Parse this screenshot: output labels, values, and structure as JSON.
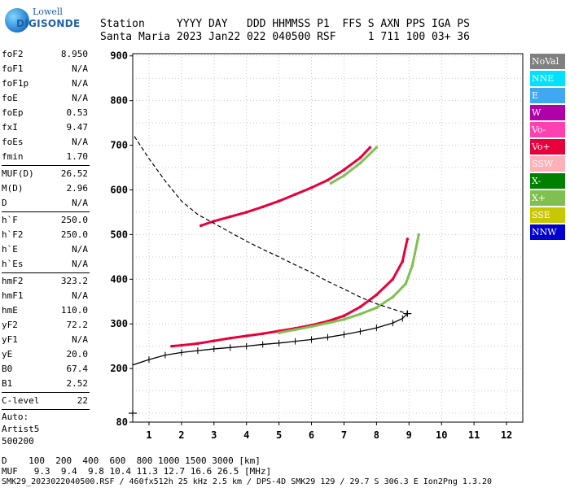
{
  "logo": {
    "brand": "Lowell",
    "product": "DIGISONDE"
  },
  "header": {
    "row1": "Station     YYYY DAY   DDD HHMMSS P1  FFS S AXN PPS IGA PS",
    "row2": "Santa Maria 2023 Jan22 022 040500 RSF     1 711 100 03+ 36"
  },
  "params": {
    "group1": [
      {
        "label": "foF2",
        "value": "8.950"
      },
      {
        "label": "foF1",
        "value": "N/A"
      },
      {
        "label": "foF1p",
        "value": "N/A"
      },
      {
        "label": "foE",
        "value": "N/A"
      },
      {
        "label": "foEp",
        "value": "0.53"
      },
      {
        "label": "fxI",
        "value": "9.47"
      },
      {
        "label": "foEs",
        "value": "N/A"
      },
      {
        "label": "fmin",
        "value": "1.70"
      }
    ],
    "group2": [
      {
        "label": "MUF(D)",
        "value": "26.52"
      },
      {
        "label": "M(D)",
        "value": "2.96"
      },
      {
        "label": "D",
        "value": "N/A"
      }
    ],
    "group3": [
      {
        "label": "h`F",
        "value": "250.0"
      },
      {
        "label": "h`F2",
        "value": "250.0"
      },
      {
        "label": "h`E",
        "value": "N/A"
      },
      {
        "label": "h`Es",
        "value": "N/A"
      }
    ],
    "group4": [
      {
        "label": "hmF2",
        "value": "323.2"
      },
      {
        "label": "hmF1",
        "value": "N/A"
      },
      {
        "label": "hmE",
        "value": "110.0"
      },
      {
        "label": "yF2",
        "value": "72.2"
      },
      {
        "label": "yF1",
        "value": "N/A"
      },
      {
        "label": "yE",
        "value": "20.0"
      },
      {
        "label": "B0",
        "value": "67.4"
      },
      {
        "label": "B1",
        "value": "2.52"
      }
    ],
    "clevel": {
      "label": "C-level",
      "value": "22"
    },
    "auto": [
      "Auto:",
      "Artist5",
      "500200"
    ]
  },
  "legend": [
    {
      "name": "NoVal",
      "color": "#808080"
    },
    {
      "name": "NNE",
      "color": "#00e0ff"
    },
    {
      "name": "E",
      "color": "#40a8f0"
    },
    {
      "name": "W",
      "color": "#b000a8"
    },
    {
      "name": "Vo-",
      "color": "#ff40b0"
    },
    {
      "name": "Vo+",
      "color": "#e8003c"
    },
    {
      "name": "SSW",
      "color": "#ffb0b8"
    },
    {
      "name": "X-",
      "color": "#008000"
    },
    {
      "name": "X+",
      "color": "#80c050"
    },
    {
      "name": "SSE",
      "color": "#c8c800"
    },
    {
      "name": "NNW",
      "color": "#0000d0"
    }
  ],
  "footer": {
    "d_row": "D    100  200  400  600  800 1000 1500 3000 [km]",
    "muf_row": "MUF   9.3  9.4  9.8 10.4 11.3 12.7 16.6 26.5 [MHz]",
    "file_row": "SMK29_2023022040500.RSF / 460fx512h 25 kHz 2.5 km / DPS-4D SMK29 129 / 29.7 S 306.3 E Ion2Png 1.3.20"
  },
  "chart_data": {
    "type": "scatter",
    "xlim": [
      0.5,
      12.5
    ],
    "ylim": [
      80,
      905
    ],
    "x_ticks": [
      1,
      2,
      3,
      4,
      5,
      6,
      7,
      8,
      9,
      10,
      11,
      12
    ],
    "y_ticks": [
      80,
      200,
      300,
      400,
      500,
      600,
      700,
      800,
      900
    ],
    "series": [
      {
        "name": "Vo+",
        "points": [
          [
            1.7,
            250
          ],
          [
            2.0,
            252
          ],
          [
            2.5,
            256
          ],
          [
            3.0,
            262
          ],
          [
            3.5,
            268
          ],
          [
            4.0,
            273
          ],
          [
            4.5,
            278
          ],
          [
            5.0,
            284
          ],
          [
            5.5,
            290
          ],
          [
            6.0,
            297
          ],
          [
            6.5,
            306
          ],
          [
            7.0,
            318
          ],
          [
            7.5,
            338
          ],
          [
            8.0,
            365
          ],
          [
            8.5,
            400
          ],
          [
            8.8,
            440
          ],
          [
            8.95,
            490
          ]
        ]
      },
      {
        "name": "X+",
        "points": [
          [
            5.0,
            280
          ],
          [
            5.5,
            287
          ],
          [
            6.0,
            294
          ],
          [
            6.5,
            302
          ],
          [
            7.0,
            310
          ],
          [
            7.5,
            322
          ],
          [
            8.0,
            336
          ],
          [
            8.5,
            360
          ],
          [
            8.9,
            390
          ],
          [
            9.1,
            430
          ],
          [
            9.3,
            500
          ]
        ]
      },
      {
        "name": "Vo+",
        "points": [
          [
            2.6,
            520
          ],
          [
            3.0,
            530
          ],
          [
            3.5,
            540
          ],
          [
            4.0,
            550
          ],
          [
            4.5,
            562
          ],
          [
            5.0,
            575
          ],
          [
            5.5,
            590
          ],
          [
            6.0,
            605
          ],
          [
            6.5,
            622
          ],
          [
            7.0,
            645
          ],
          [
            7.5,
            672
          ],
          [
            7.8,
            695
          ]
        ]
      },
      {
        "name": "X+",
        "points": [
          [
            6.6,
            615
          ],
          [
            7.0,
            632
          ],
          [
            7.5,
            660
          ],
          [
            8.0,
            695
          ]
        ]
      }
    ],
    "profile_curve": [
      [
        0.5,
        208
      ],
      [
        1.0,
        220
      ],
      [
        1.5,
        230
      ],
      [
        2.0,
        236
      ],
      [
        2.5,
        240
      ],
      [
        3.0,
        244
      ],
      [
        3.5,
        247
      ],
      [
        4.0,
        250
      ],
      [
        4.5,
        254
      ],
      [
        5.0,
        257
      ],
      [
        5.5,
        261
      ],
      [
        6.0,
        265
      ],
      [
        6.5,
        270
      ],
      [
        7.0,
        276
      ],
      [
        7.5,
        283
      ],
      [
        8.0,
        291
      ],
      [
        8.5,
        302
      ],
      [
        8.8,
        312
      ],
      [
        8.95,
        323
      ]
    ],
    "muf_curve": [
      [
        0.55,
        720
      ],
      [
        1.0,
        670
      ],
      [
        1.5,
        620
      ],
      [
        2.0,
        575
      ],
      [
        2.5,
        545
      ],
      [
        3.0,
        525
      ],
      [
        3.5,
        505
      ],
      [
        4.0,
        485
      ],
      [
        4.5,
        467
      ],
      [
        5.0,
        450
      ],
      [
        5.5,
        432
      ],
      [
        6.0,
        415
      ],
      [
        6.5,
        395
      ],
      [
        7.0,
        378
      ],
      [
        7.5,
        360
      ],
      [
        8.0,
        345
      ],
      [
        8.5,
        333
      ],
      [
        8.95,
        323
      ]
    ],
    "markers": [
      [
        0.5,
        100
      ],
      [
        8.95,
        323
      ]
    ]
  }
}
